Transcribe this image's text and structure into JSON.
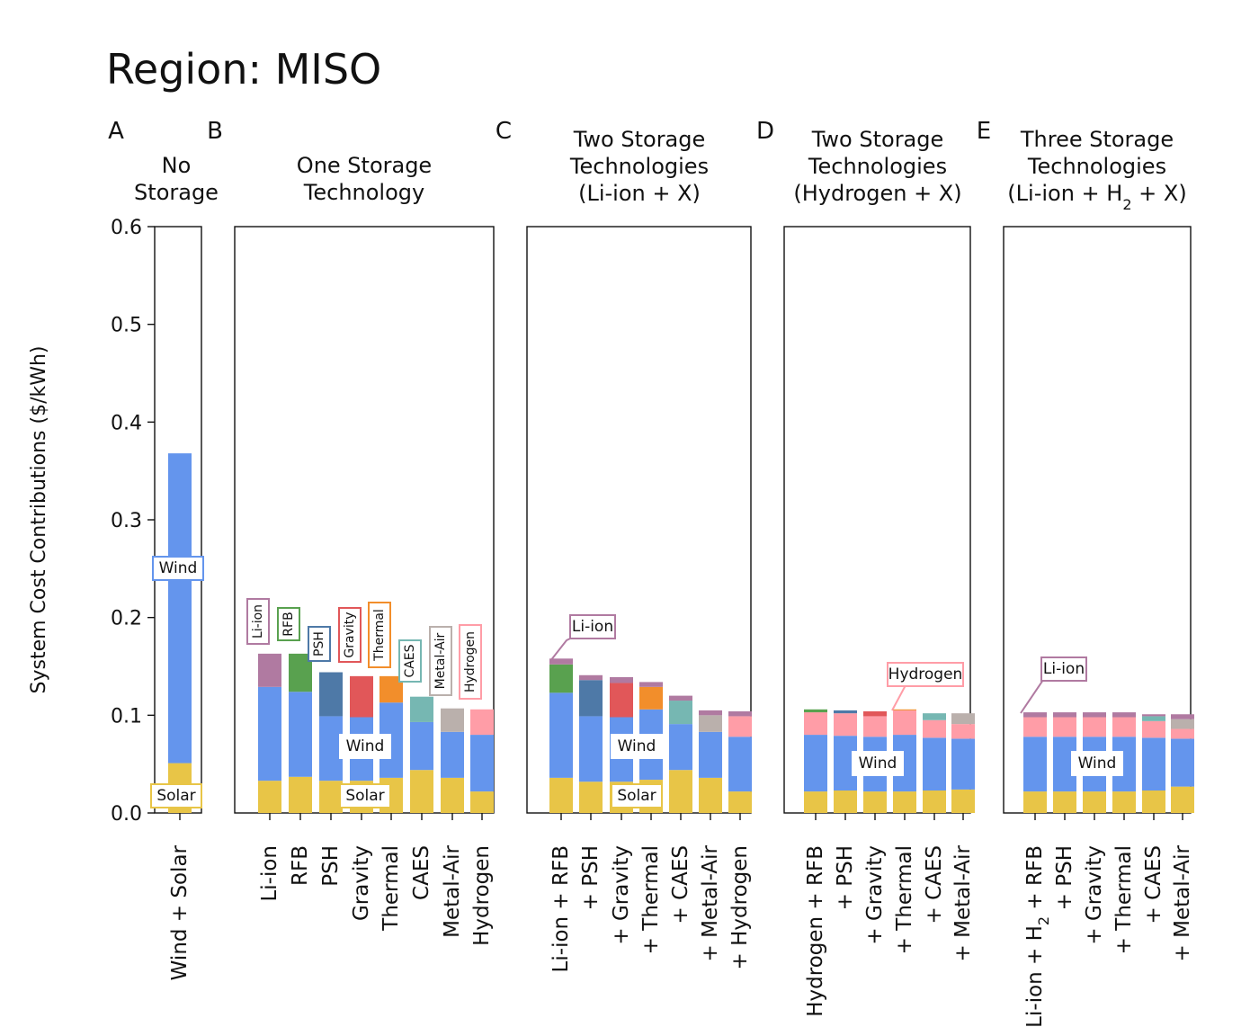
{
  "figure": {
    "title": "Region: MISO",
    "ylabel": "System Cost Contributions ($/kWh)"
  },
  "colors": {
    "Solar": "#e8c547",
    "Wind": "#6495ed",
    "Li-ion": "#b07aa1",
    "RFB": "#59a14f",
    "PSH": "#4e79a7",
    "Gravity": "#e15759",
    "Thermal": "#f28e2b",
    "CAES": "#76b7b2",
    "Metal-Air": "#bab0ac",
    "Hydrogen": "#ff9da7"
  },
  "chart_data": [
    {
      "type": "bar",
      "stacked": true,
      "panel_letter": "A",
      "title_lines": [
        "No",
        "Storage"
      ],
      "ylim": [
        0,
        0.6
      ],
      "yticks": [
        "0.0",
        "0.1",
        "0.2",
        "0.3",
        "0.4",
        "0.5",
        "0.6"
      ],
      "categories": [
        "Wind + Solar"
      ],
      "series": [
        {
          "name": "Solar",
          "values": [
            0.051
          ]
        },
        {
          "name": "Wind",
          "values": [
            0.317
          ]
        }
      ],
      "annotations": [
        "Wind",
        "Solar"
      ]
    },
    {
      "type": "bar",
      "stacked": true,
      "panel_letter": "B",
      "title_lines": [
        "One Storage",
        "Technology"
      ],
      "ylim": [
        0,
        0.6
      ],
      "categories": [
        "Li-ion",
        "RFB",
        "PSH",
        "Gravity",
        "Thermal",
        "CAES",
        "Metal-Air",
        "Hydrogen"
      ],
      "stacks": [
        [
          [
            "Solar",
            0.033
          ],
          [
            "Wind",
            0.096
          ],
          [
            "Li-ion",
            0.034
          ]
        ],
        [
          [
            "Solar",
            0.037
          ],
          [
            "Wind",
            0.087
          ],
          [
            "RFB",
            0.039
          ]
        ],
        [
          [
            "Solar",
            0.033
          ],
          [
            "Wind",
            0.066
          ],
          [
            "PSH",
            0.045
          ]
        ],
        [
          [
            "Solar",
            0.033
          ],
          [
            "Wind",
            0.065
          ],
          [
            "Gravity",
            0.042
          ]
        ],
        [
          [
            "Solar",
            0.036
          ],
          [
            "Wind",
            0.077
          ],
          [
            "Thermal",
            0.027
          ]
        ],
        [
          [
            "Solar",
            0.044
          ],
          [
            "Wind",
            0.049
          ],
          [
            "CAES",
            0.026
          ]
        ],
        [
          [
            "Solar",
            0.036
          ],
          [
            "Wind",
            0.047
          ],
          [
            "Metal-Air",
            0.024
          ]
        ],
        [
          [
            "Solar",
            0.022
          ],
          [
            "Wind",
            0.058
          ],
          [
            "Hydrogen",
            0.026
          ]
        ]
      ],
      "annotations": [
        "Li-ion",
        "RFB",
        "PSH",
        "Gravity",
        "Thermal",
        "CAES",
        "Metal-Air",
        "Hydrogen",
        "Wind",
        "Solar"
      ]
    },
    {
      "type": "bar",
      "stacked": true,
      "panel_letter": "C",
      "title_lines": [
        "Two Storage",
        "Technologies",
        "(Li-ion + X)"
      ],
      "ylim": [
        0,
        0.6
      ],
      "categories": [
        "Li-ion + RFB",
        "+ PSH",
        "+ Gravity",
        "+ Thermal",
        "+ CAES",
        "+ Metal-Air",
        "+ Hydrogen"
      ],
      "stacks": [
        [
          [
            "Solar",
            0.036
          ],
          [
            "Wind",
            0.087
          ],
          [
            "RFB",
            0.029
          ],
          [
            "Li-ion",
            0.006
          ]
        ],
        [
          [
            "Solar",
            0.032
          ],
          [
            "Wind",
            0.067
          ],
          [
            "PSH",
            0.037
          ],
          [
            "Li-ion",
            0.005
          ]
        ],
        [
          [
            "Solar",
            0.032
          ],
          [
            "Wind",
            0.066
          ],
          [
            "Gravity",
            0.035
          ],
          [
            "Li-ion",
            0.006
          ]
        ],
        [
          [
            "Solar",
            0.034
          ],
          [
            "Wind",
            0.072
          ],
          [
            "Thermal",
            0.023
          ],
          [
            "Li-ion",
            0.005
          ]
        ],
        [
          [
            "Solar",
            0.044
          ],
          [
            "Wind",
            0.047
          ],
          [
            "CAES",
            0.024
          ],
          [
            "Li-ion",
            0.005
          ]
        ],
        [
          [
            "Solar",
            0.036
          ],
          [
            "Wind",
            0.047
          ],
          [
            "Metal-Air",
            0.017
          ],
          [
            "Li-ion",
            0.005
          ]
        ],
        [
          [
            "Solar",
            0.022
          ],
          [
            "Wind",
            0.056
          ],
          [
            "Hydrogen",
            0.021
          ],
          [
            "Li-ion",
            0.005
          ]
        ]
      ],
      "annotations": [
        "Li-ion",
        "Wind",
        "Solar"
      ]
    },
    {
      "type": "bar",
      "stacked": true,
      "panel_letter": "D",
      "title_lines": [
        "Two Storage",
        "Technologies",
        "(Hydrogen + X)"
      ],
      "ylim": [
        0,
        0.6
      ],
      "categories": [
        "Hydrogen + RFB",
        "+ PSH",
        "+ Gravity",
        "+ Thermal",
        "+ CAES",
        "+ Metal-Air"
      ],
      "stacks": [
        [
          [
            "Solar",
            0.022
          ],
          [
            "Wind",
            0.058
          ],
          [
            "Hydrogen",
            0.023
          ],
          [
            "RFB",
            0.003
          ]
        ],
        [
          [
            "Solar",
            0.023
          ],
          [
            "Wind",
            0.056
          ],
          [
            "Hydrogen",
            0.023
          ],
          [
            "PSH",
            0.003
          ]
        ],
        [
          [
            "Solar",
            0.022
          ],
          [
            "Wind",
            0.056
          ],
          [
            "Hydrogen",
            0.021
          ],
          [
            "Gravity",
            0.005
          ]
        ],
        [
          [
            "Solar",
            0.022
          ],
          [
            "Wind",
            0.058
          ],
          [
            "Hydrogen",
            0.025
          ],
          [
            "Thermal",
            0.001
          ]
        ],
        [
          [
            "Solar",
            0.023
          ],
          [
            "Wind",
            0.054
          ],
          [
            "Hydrogen",
            0.018
          ],
          [
            "CAES",
            0.007
          ]
        ],
        [
          [
            "Solar",
            0.024
          ],
          [
            "Wind",
            0.052
          ],
          [
            "Hydrogen",
            0.015
          ],
          [
            "Metal-Air",
            0.011
          ]
        ]
      ],
      "annotations": [
        "Hydrogen",
        "Wind"
      ]
    },
    {
      "type": "bar",
      "stacked": true,
      "panel_letter": "E",
      "title_lines": [
        "Three Storage",
        "Technologies",
        "(Li-ion + H2 + X)"
      ],
      "ylim": [
        0,
        0.6
      ],
      "categories": [
        "Li-ion + H2 + RFB",
        "+ PSH",
        "+ Gravity",
        "+ Thermal",
        "+ CAES",
        "+ Metal-Air"
      ],
      "stacks": [
        [
          [
            "Solar",
            0.022
          ],
          [
            "Wind",
            0.056
          ],
          [
            "Hydrogen",
            0.02
          ],
          [
            "RFB",
            0.0
          ],
          [
            "Li-ion",
            0.005
          ]
        ],
        [
          [
            "Solar",
            0.022
          ],
          [
            "Wind",
            0.056
          ],
          [
            "Hydrogen",
            0.02
          ],
          [
            "PSH",
            0.0
          ],
          [
            "Li-ion",
            0.005
          ]
        ],
        [
          [
            "Solar",
            0.022
          ],
          [
            "Wind",
            0.056
          ],
          [
            "Hydrogen",
            0.02
          ],
          [
            "Gravity",
            0.0
          ],
          [
            "Li-ion",
            0.005
          ]
        ],
        [
          [
            "Solar",
            0.022
          ],
          [
            "Wind",
            0.056
          ],
          [
            "Hydrogen",
            0.02
          ],
          [
            "Thermal",
            0.0
          ],
          [
            "Li-ion",
            0.005
          ]
        ],
        [
          [
            "Solar",
            0.023
          ],
          [
            "Wind",
            0.054
          ],
          [
            "Hydrogen",
            0.017
          ],
          [
            "CAES",
            0.005
          ],
          [
            "Li-ion",
            0.002
          ]
        ],
        [
          [
            "Solar",
            0.027
          ],
          [
            "Wind",
            0.049
          ],
          [
            "Hydrogen",
            0.01
          ],
          [
            "Metal-Air",
            0.01
          ],
          [
            "Li-ion",
            0.005
          ]
        ]
      ],
      "annotations": [
        "Li-ion",
        "Wind"
      ]
    }
  ]
}
